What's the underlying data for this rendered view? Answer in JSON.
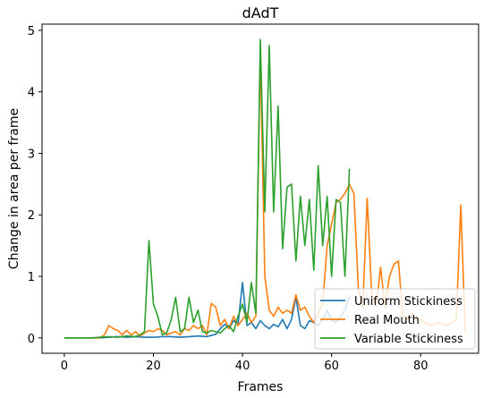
{
  "chart_data": {
    "type": "line",
    "title": "dAdT",
    "xlabel": "Frames",
    "ylabel": "Change in area per frame",
    "xlim": [
      -5,
      93
    ],
    "ylim": [
      -0.25,
      5.1
    ],
    "xticks": [
      0,
      20,
      40,
      60,
      80
    ],
    "yticks": [
      0,
      1,
      2,
      3,
      4,
      5
    ],
    "grid": false,
    "legend_position": "lower-right",
    "series": [
      {
        "name": "Uniform Stickiness",
        "color": "#1f77b4",
        "points": [
          [
            0,
            0
          ],
          [
            2,
            0
          ],
          [
            4,
            0
          ],
          [
            6,
            0
          ],
          [
            8,
            0
          ],
          [
            10,
            0.01
          ],
          [
            12,
            0.02
          ],
          [
            14,
            0.01
          ],
          [
            16,
            0.02
          ],
          [
            18,
            0.01
          ],
          [
            20,
            0.01
          ],
          [
            22,
            0.02
          ],
          [
            24,
            0.02
          ],
          [
            26,
            0.01
          ],
          [
            28,
            0.02
          ],
          [
            30,
            0.03
          ],
          [
            32,
            0.02
          ],
          [
            34,
            0.06
          ],
          [
            35,
            0.15
          ],
          [
            36,
            0.22
          ],
          [
            37,
            0.15
          ],
          [
            38,
            0.28
          ],
          [
            39,
            0.22
          ],
          [
            40,
            0.9
          ],
          [
            41,
            0.2
          ],
          [
            42,
            0.25
          ],
          [
            43,
            0.15
          ],
          [
            44,
            0.28
          ],
          [
            45,
            0.2
          ],
          [
            46,
            0.15
          ],
          [
            47,
            0.22
          ],
          [
            48,
            0.18
          ],
          [
            49,
            0.3
          ],
          [
            50,
            0.15
          ],
          [
            51,
            0.3
          ],
          [
            52,
            0.66
          ],
          [
            53,
            0.2
          ],
          [
            54,
            0.15
          ],
          [
            55,
            0.28
          ],
          [
            56,
            0.25
          ],
          [
            57,
            0.2
          ],
          [
            58,
            0.3
          ],
          [
            59,
            0.45
          ],
          [
            60,
            0.3
          ],
          [
            61,
            0.25
          ],
          [
            62,
            0.35
          ],
          [
            63,
            0.45
          ],
          [
            64,
            0.66
          ]
        ]
      },
      {
        "name": "Real Mouth",
        "color": "#ff7f0e",
        "points": [
          [
            0,
            0
          ],
          [
            2,
            0
          ],
          [
            4,
            0
          ],
          [
            6,
            0
          ],
          [
            8,
            0
          ],
          [
            9,
            0.05
          ],
          [
            10,
            0.2
          ],
          [
            11,
            0.15
          ],
          [
            12,
            0.12
          ],
          [
            13,
            0.05
          ],
          [
            14,
            0.12
          ],
          [
            15,
            0.05
          ],
          [
            16,
            0.1
          ],
          [
            17,
            0.03
          ],
          [
            18,
            0.08
          ],
          [
            19,
            0.12
          ],
          [
            20,
            0.1
          ],
          [
            21,
            0.15
          ],
          [
            22,
            0.12
          ],
          [
            23,
            0.05
          ],
          [
            24,
            0.08
          ],
          [
            25,
            0.1
          ],
          [
            26,
            0.05
          ],
          [
            27,
            0.15
          ],
          [
            28,
            0.12
          ],
          [
            29,
            0.2
          ],
          [
            30,
            0.15
          ],
          [
            31,
            0.2
          ],
          [
            32,
            0.05
          ],
          [
            33,
            0.56
          ],
          [
            34,
            0.5
          ],
          [
            35,
            0.2
          ],
          [
            36,
            0.3
          ],
          [
            37,
            0.15
          ],
          [
            38,
            0.35
          ],
          [
            39,
            0.2
          ],
          [
            40,
            0.3
          ],
          [
            41,
            0.4
          ],
          [
            42,
            0.25
          ],
          [
            43,
            0.35
          ],
          [
            44,
            4.65
          ],
          [
            45,
            1.0
          ],
          [
            46,
            0.45
          ],
          [
            47,
            0.35
          ],
          [
            48,
            0.5
          ],
          [
            49,
            0.4
          ],
          [
            50,
            0.45
          ],
          [
            51,
            0.4
          ],
          [
            52,
            0.7
          ],
          [
            53,
            0.45
          ],
          [
            54,
            0.5
          ],
          [
            55,
            0.35
          ],
          [
            56,
            0.25
          ],
          [
            57,
            0.4
          ],
          [
            58,
            0.55
          ],
          [
            59,
            1.5
          ],
          [
            60,
            1.85
          ],
          [
            61,
            2.2
          ],
          [
            62,
            2.25
          ],
          [
            63,
            2.35
          ],
          [
            64,
            2.5
          ],
          [
            65,
            2.35
          ],
          [
            66,
            0.8
          ],
          [
            67,
            0.5
          ],
          [
            68,
            2.27
          ],
          [
            69,
            0.7
          ],
          [
            70,
            0.5
          ],
          [
            71,
            1.15
          ],
          [
            72,
            0.5
          ],
          [
            73,
            1.0
          ],
          [
            74,
            1.2
          ],
          [
            75,
            1.25
          ],
          [
            76,
            0.35
          ],
          [
            77,
            0.3
          ],
          [
            78,
            0.4
          ],
          [
            79,
            0.3
          ],
          [
            80,
            0.3
          ],
          [
            82,
            0.2
          ],
          [
            84,
            0.25
          ],
          [
            86,
            0.2
          ],
          [
            88,
            0.3
          ],
          [
            89,
            2.16
          ],
          [
            90,
            0.1
          ]
        ]
      },
      {
        "name": "Variable Stickiness",
        "color": "#2ca02c",
        "points": [
          [
            0,
            0
          ],
          [
            2,
            0
          ],
          [
            4,
            0
          ],
          [
            6,
            0
          ],
          [
            8,
            0.01
          ],
          [
            10,
            0.02
          ],
          [
            12,
            0.01
          ],
          [
            14,
            0.03
          ],
          [
            16,
            0.02
          ],
          [
            17,
            0.05
          ],
          [
            18,
            0.1
          ],
          [
            19,
            1.58
          ],
          [
            20,
            0.55
          ],
          [
            21,
            0.35
          ],
          [
            22,
            0.05
          ],
          [
            23,
            0.08
          ],
          [
            24,
            0.3
          ],
          [
            25,
            0.66
          ],
          [
            26,
            0.1
          ],
          [
            27,
            0.15
          ],
          [
            28,
            0.66
          ],
          [
            29,
            0.25
          ],
          [
            30,
            0.45
          ],
          [
            31,
            0.1
          ],
          [
            32,
            0.08
          ],
          [
            33,
            0.12
          ],
          [
            34,
            0.1
          ],
          [
            35,
            0.08
          ],
          [
            36,
            0.15
          ],
          [
            37,
            0.2
          ],
          [
            38,
            0.1
          ],
          [
            39,
            0.35
          ],
          [
            40,
            0.55
          ],
          [
            41,
            0.25
          ],
          [
            42,
            0.9
          ],
          [
            43,
            0.4
          ],
          [
            44,
            4.85
          ],
          [
            45,
            2.05
          ],
          [
            46,
            4.75
          ],
          [
            47,
            2.05
          ],
          [
            48,
            3.77
          ],
          [
            49,
            1.45
          ],
          [
            50,
            2.45
          ],
          [
            51,
            2.5
          ],
          [
            52,
            1.25
          ],
          [
            53,
            2.3
          ],
          [
            54,
            1.5
          ],
          [
            55,
            2.25
          ],
          [
            56,
            1.1
          ],
          [
            57,
            2.8
          ],
          [
            58,
            1.5
          ],
          [
            59,
            2.3
          ],
          [
            60,
            1.0
          ],
          [
            61,
            2.25
          ],
          [
            62,
            2.2
          ],
          [
            63,
            1.0
          ],
          [
            64,
            2.75
          ]
        ]
      }
    ]
  }
}
